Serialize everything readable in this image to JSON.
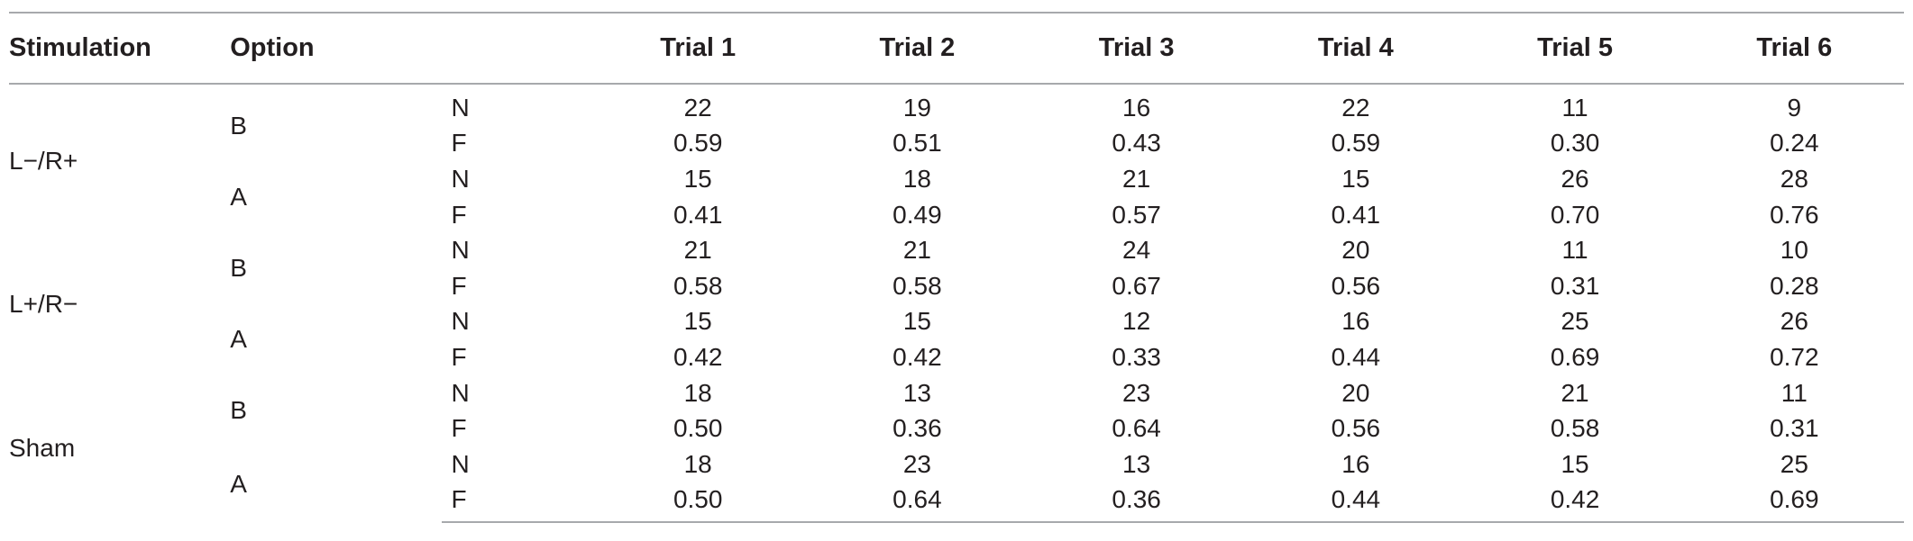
{
  "table": {
    "headers": {
      "stimulation": "Stimulation",
      "option": "Option",
      "stat": "",
      "trials": [
        "Trial 1",
        "Trial 2",
        "Trial 3",
        "Trial 4",
        "Trial 5",
        "Trial 6"
      ]
    },
    "groups": [
      {
        "stimulation": "L−/R+",
        "options": [
          {
            "option": "B",
            "rows": [
              {
                "stat": "N",
                "values": [
                  "22",
                  "19",
                  "16",
                  "22",
                  "11",
                  "9"
                ]
              },
              {
                "stat": "F",
                "values": [
                  "0.59",
                  "0.51",
                  "0.43",
                  "0.59",
                  "0.30",
                  "0.24"
                ]
              }
            ]
          },
          {
            "option": "A",
            "rows": [
              {
                "stat": "N",
                "values": [
                  "15",
                  "18",
                  "21",
                  "15",
                  "26",
                  "28"
                ]
              },
              {
                "stat": "F",
                "values": [
                  "0.41",
                  "0.49",
                  "0.57",
                  "0.41",
                  "0.70",
                  "0.76"
                ]
              }
            ]
          }
        ]
      },
      {
        "stimulation": "L+/R−",
        "options": [
          {
            "option": "B",
            "rows": [
              {
                "stat": "N",
                "values": [
                  "21",
                  "21",
                  "24",
                  "20",
                  "11",
                  "10"
                ]
              },
              {
                "stat": "F",
                "values": [
                  "0.58",
                  "0.58",
                  "0.67",
                  "0.56",
                  "0.31",
                  "0.28"
                ]
              }
            ]
          },
          {
            "option": "A",
            "rows": [
              {
                "stat": "N",
                "values": [
                  "15",
                  "15",
                  "12",
                  "16",
                  "25",
                  "26"
                ]
              },
              {
                "stat": "F",
                "values": [
                  "0.42",
                  "0.42",
                  "0.33",
                  "0.44",
                  "0.69",
                  "0.72"
                ]
              }
            ]
          }
        ]
      },
      {
        "stimulation": "Sham",
        "options": [
          {
            "option": "B",
            "rows": [
              {
                "stat": "N",
                "values": [
                  "18",
                  "13",
                  "23",
                  "20",
                  "21",
                  "11"
                ]
              },
              {
                "stat": "F",
                "values": [
                  "0.50",
                  "0.36",
                  "0.64",
                  "0.56",
                  "0.58",
                  "0.31"
                ]
              }
            ]
          },
          {
            "option": "A",
            "rows": [
              {
                "stat": "N",
                "values": [
                  "18",
                  "23",
                  "13",
                  "16",
                  "15",
                  "25"
                ]
              },
              {
                "stat": "F",
                "values": [
                  "0.50",
                  "0.64",
                  "0.36",
                  "0.44",
                  "0.42",
                  "0.69"
                ]
              }
            ]
          }
        ]
      }
    ]
  }
}
